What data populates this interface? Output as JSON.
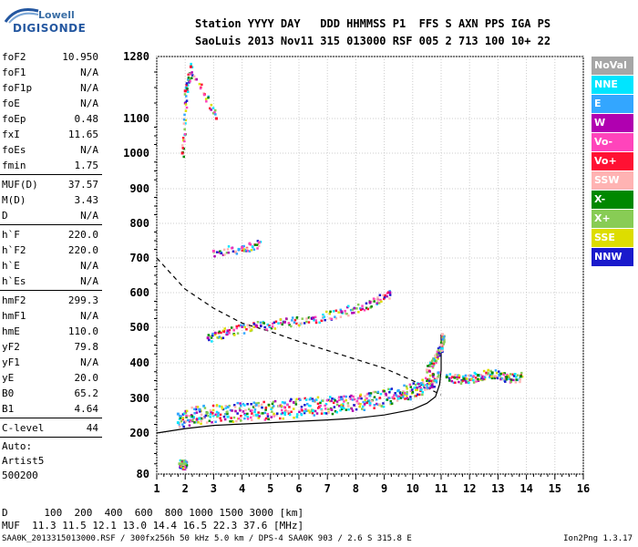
{
  "logo": {
    "top": "Lowell",
    "bottom": "DIGISONDE"
  },
  "header": {
    "line1": "Station YYYY DAY   DDD HHMMSS P1  FFS S AXN PPS IGA PS",
    "line2": "SaoLuis 2013 Nov11 315 013000 RSF 005 2 713 100 10+ 22"
  },
  "params": {
    "g1": [
      {
        "name": "foF2",
        "value": "10.950"
      },
      {
        "name": "foF1",
        "value": "N/A"
      },
      {
        "name": "foF1p",
        "value": "N/A"
      },
      {
        "name": "foE",
        "value": "N/A"
      },
      {
        "name": "foEp",
        "value": "0.48"
      },
      {
        "name": "fxI",
        "value": "11.65"
      },
      {
        "name": "foEs",
        "value": "N/A"
      },
      {
        "name": "fmin",
        "value": "1.75"
      }
    ],
    "g2": [
      {
        "name": "MUF(D)",
        "value": "37.57"
      },
      {
        "name": "M(D)",
        "value": "3.43"
      },
      {
        "name": "D",
        "value": "N/A"
      }
    ],
    "g3": [
      {
        "name": "h`F",
        "value": "220.0"
      },
      {
        "name": "h`F2",
        "value": "220.0"
      },
      {
        "name": "h`E",
        "value": "N/A"
      },
      {
        "name": "h`Es",
        "value": "N/A"
      }
    ],
    "g4": [
      {
        "name": "hmF2",
        "value": "299.3"
      },
      {
        "name": "hmF1",
        "value": "N/A"
      },
      {
        "name": "hmE",
        "value": "110.0"
      },
      {
        "name": "yF2",
        "value": "79.8"
      },
      {
        "name": "yF1",
        "value": "N/A"
      },
      {
        "name": "yE",
        "value": "20.0"
      },
      {
        "name": "B0",
        "value": "65.2"
      },
      {
        "name": "B1",
        "value": "4.64"
      }
    ],
    "g5": [
      {
        "name": "C-level",
        "value": "44"
      }
    ],
    "auto": [
      "Auto:",
      "Artist5",
      "500200"
    ]
  },
  "legend": [
    {
      "label": "NoVal",
      "color": "#a6a6a6"
    },
    {
      "label": "NNE",
      "color": "#00e5ff"
    },
    {
      "label": "E",
      "color": "#33a6ff"
    },
    {
      "label": "W",
      "color": "#b000b0"
    },
    {
      "label": "Vo-",
      "color": "#ff44bb"
    },
    {
      "label": "Vo+",
      "color": "#ff1133"
    },
    {
      "label": "SSW",
      "color": "#ffb3b3"
    },
    {
      "label": "X-",
      "color": "#008800"
    },
    {
      "label": "X+",
      "color": "#88cc55"
    },
    {
      "label": "SSE",
      "color": "#dddd00"
    },
    {
      "label": "NNW",
      "color": "#1a1acc"
    }
  ],
  "footer": {
    "line1": "D      100  200  400  600  800 1000 1500 3000 [km]",
    "line2": "MUF  11.3 11.5 12.1 13.0 14.4 16.5 22.3 37.6 [MHz]"
  },
  "bottom_left": "SAA0K_2013315013000.RSF / 300fx256h 50 kHz 5.0 km / DPS-4 SAA0K 903 / 2.6 S 315.8 E",
  "version": "Ion2Png 1.3.17",
  "chart_data": {
    "type": "scatter",
    "title": "",
    "xlabel": "",
    "ylabel": "",
    "x_ticks": [
      1,
      2,
      3,
      4,
      5,
      6,
      7,
      8,
      9,
      10,
      11,
      12,
      13,
      14,
      15,
      16
    ],
    "y_ticks": [
      80,
      200,
      300,
      400,
      500,
      600,
      700,
      800,
      900,
      1000,
      1100,
      1280
    ],
    "y_tick_labels": [
      "80",
      "200",
      "300",
      "400",
      "500",
      "600",
      "700",
      "800",
      "900",
      "1000",
      "1100",
      "1280"
    ],
    "xlim": [
      1,
      16
    ],
    "ylim": [
      80,
      1280
    ],
    "grid": true,
    "series": [
      {
        "points": [
          [
            1.75,
            230
          ],
          [
            2.5,
            242
          ],
          [
            3.5,
            247
          ],
          [
            4.5,
            252
          ],
          [
            5.5,
            258
          ],
          [
            6.5,
            264
          ],
          [
            7.5,
            274
          ],
          [
            8.5,
            286
          ],
          [
            9.5,
            300
          ],
          [
            10.3,
            325
          ],
          [
            10.8,
            350
          ]
        ]
      },
      {
        "points": [
          [
            1.75,
            255
          ],
          [
            2.5,
            268
          ],
          [
            3.5,
            275
          ],
          [
            4.5,
            281
          ],
          [
            5.5,
            287
          ],
          [
            6.5,
            293
          ],
          [
            7.5,
            298
          ],
          [
            8.5,
            308
          ],
          [
            9.5,
            322
          ],
          [
            10.3,
            342
          ],
          [
            10.9,
            372
          ]
        ]
      },
      {
        "points": [
          [
            2.8,
            470
          ],
          [
            3.5,
            490
          ],
          [
            4.5,
            505
          ],
          [
            5.5,
            515
          ],
          [
            6.5,
            527
          ],
          [
            7.5,
            545
          ],
          [
            8.5,
            572
          ],
          [
            9.2,
            600
          ]
        ]
      },
      {
        "points": [
          [
            3.0,
            720
          ],
          [
            4.0,
            730
          ],
          [
            4.6,
            745
          ]
        ]
      },
      {
        "points": [
          [
            1.9,
            1000
          ],
          [
            2.0,
            1180
          ],
          [
            2.2,
            1250
          ],
          [
            3.1,
            1100
          ]
        ]
      },
      {
        "points": [
          [
            10.5,
            380
          ],
          [
            10.8,
            420
          ],
          [
            11.0,
            450
          ],
          [
            11.05,
            480
          ]
        ]
      },
      {
        "points": [
          [
            11.2,
            360
          ],
          [
            11.8,
            355
          ],
          [
            12.3,
            365
          ],
          [
            12.8,
            372
          ],
          [
            13.3,
            360
          ],
          [
            13.8,
            362
          ]
        ]
      },
      {
        "points": [
          [
            1.8,
            110
          ],
          [
            1.9,
            110
          ],
          [
            2.0,
            110
          ]
        ]
      }
    ],
    "profile_solid": [
      [
        1,
        200
      ],
      [
        2,
        213
      ],
      [
        3,
        222
      ],
      [
        4,
        226
      ],
      [
        5,
        230
      ],
      [
        6,
        234
      ],
      [
        7,
        238
      ],
      [
        8,
        243
      ],
      [
        9,
        252
      ],
      [
        10,
        268
      ],
      [
        10.5,
        286
      ],
      [
        10.8,
        305
      ],
      [
        10.95,
        340
      ],
      [
        11.0,
        380
      ],
      [
        11.0,
        480
      ]
    ],
    "profile_dashed": [
      [
        1,
        700
      ],
      [
        1.5,
        655
      ],
      [
        2,
        610
      ],
      [
        3,
        555
      ],
      [
        4,
        512
      ],
      [
        5,
        488
      ],
      [
        6,
        460
      ],
      [
        7,
        435
      ],
      [
        8,
        410
      ],
      [
        9,
        385
      ],
      [
        10,
        350
      ],
      [
        10.5,
        330
      ],
      [
        11.0,
        310
      ]
    ]
  }
}
